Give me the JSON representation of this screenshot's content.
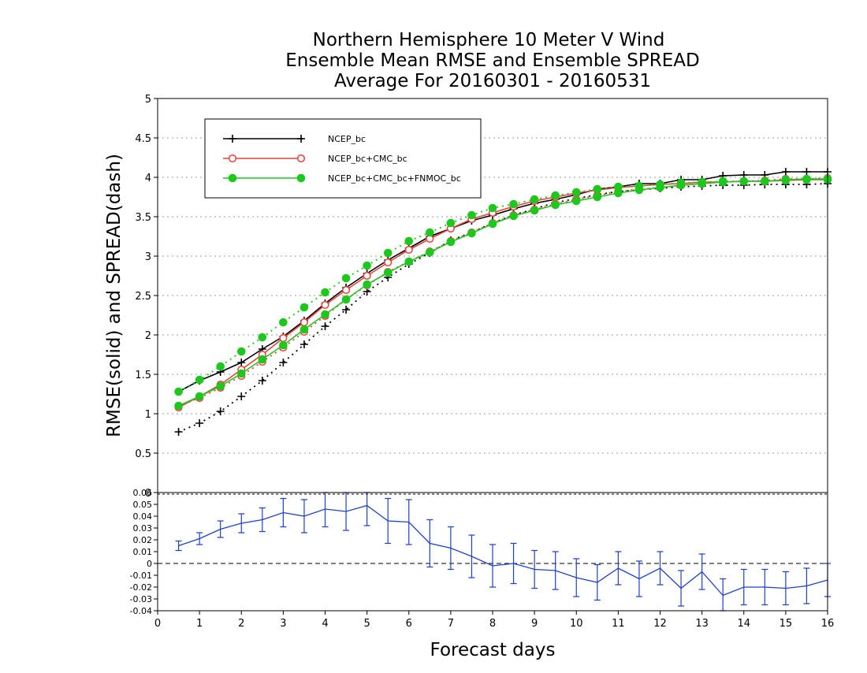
{
  "chart_data": [
    {
      "type": "line",
      "title": [
        "Northern Hemisphere 10 Meter V Wind",
        "Ensemble Mean RMSE and Ensemble SPREAD",
        "Average For 20160301 - 20160531"
      ],
      "xlabel": "",
      "ylabel": "RMSE(solid) and SPREAD(dash)",
      "xlim": [
        0,
        16
      ],
      "ylim": [
        0,
        5
      ],
      "yticks": [
        "0",
        "0.5",
        "1",
        "1.5",
        "2",
        "2.5",
        "3",
        "3.5",
        "4",
        "4.5",
        "5"
      ],
      "grid": "horizontal dotted",
      "legend_position": "top-left",
      "x": [
        0.5,
        1,
        1.5,
        2,
        2.5,
        3,
        3.5,
        4,
        4.5,
        5,
        5.5,
        6,
        6.5,
        7,
        7.5,
        8,
        8.5,
        9,
        9.5,
        10,
        10.5,
        11,
        11.5,
        12,
        12.5,
        13,
        13.5,
        14,
        14.5,
        15,
        15.5,
        16
      ],
      "series": [
        {
          "name": "NCEP_bc",
          "color": "#000000",
          "marker": "plus",
          "rmse": [
            1.28,
            1.42,
            1.53,
            1.65,
            1.82,
            1.98,
            2.18,
            2.4,
            2.6,
            2.78,
            2.95,
            3.1,
            3.25,
            3.35,
            3.45,
            3.52,
            3.6,
            3.67,
            3.72,
            3.78,
            3.85,
            3.88,
            3.92,
            3.92,
            3.97,
            3.97,
            4.02,
            4.03,
            4.03,
            4.07,
            4.07,
            4.07
          ],
          "spread": [
            0.77,
            0.88,
            1.03,
            1.22,
            1.42,
            1.65,
            1.88,
            2.11,
            2.32,
            2.55,
            2.73,
            2.9,
            3.04,
            3.2,
            3.3,
            3.42,
            3.52,
            3.6,
            3.68,
            3.73,
            3.78,
            3.82,
            3.84,
            3.86,
            3.88,
            3.89,
            3.9,
            3.9,
            3.91,
            3.91,
            3.91,
            3.92
          ]
        },
        {
          "name": "NCEP_bc+CMC_bc",
          "color": "#e8413b",
          "marker": "circle-open",
          "rmse": [
            1.08,
            1.22,
            1.37,
            1.56,
            1.75,
            1.96,
            2.16,
            2.38,
            2.57,
            2.75,
            2.92,
            3.08,
            3.22,
            3.35,
            3.47,
            3.55,
            3.63,
            3.7,
            3.75,
            3.8,
            3.84,
            3.87,
            3.89,
            3.91,
            3.92,
            3.94,
            3.94,
            3.95,
            3.95,
            3.96,
            3.97,
            3.97
          ],
          "spread": [
            1.1,
            1.2,
            1.33,
            1.48,
            1.66,
            1.84,
            2.04,
            2.24,
            2.45,
            2.63,
            2.8,
            2.93,
            3.06,
            3.19,
            3.3,
            3.42,
            3.52,
            3.59,
            3.66,
            3.72,
            3.77,
            3.82,
            3.85,
            3.87,
            3.9,
            3.92,
            3.94,
            3.95,
            3.96,
            3.98,
            3.98,
            3.99
          ]
        },
        {
          "name": "NCEP_bc+CMC_bc+FNMOC_bc",
          "color": "#1ec71e",
          "marker": "circle-filled",
          "rmse": [
            1.1,
            1.22,
            1.35,
            1.51,
            1.69,
            1.87,
            2.07,
            2.26,
            2.45,
            2.64,
            2.79,
            2.93,
            3.05,
            3.18,
            3.29,
            3.41,
            3.51,
            3.58,
            3.65,
            3.7,
            3.75,
            3.8,
            3.84,
            3.87,
            3.9,
            3.92,
            3.94,
            3.95,
            3.95,
            3.97,
            3.98,
            3.98
          ],
          "spread": [
            1.28,
            1.43,
            1.6,
            1.79,
            1.97,
            2.16,
            2.35,
            2.54,
            2.72,
            2.88,
            3.04,
            3.19,
            3.3,
            3.42,
            3.52,
            3.61,
            3.66,
            3.72,
            3.77,
            3.81,
            3.85,
            3.88,
            3.89,
            3.91,
            3.93,
            3.94,
            3.95,
            3.95,
            3.95,
            3.96,
            3.97,
            3.97
          ]
        }
      ]
    },
    {
      "type": "line",
      "subtype": "errorbar",
      "xlabel": "Forecast days",
      "xlim": [
        0,
        16
      ],
      "xticks": [
        "0",
        "1",
        "2",
        "3",
        "4",
        "5",
        "6",
        "7",
        "8",
        "9",
        "10",
        "11",
        "12",
        "13",
        "14",
        "15",
        "16"
      ],
      "ylim": [
        -0.04,
        0.06
      ],
      "yticks": [
        "-0.04",
        "-0.03",
        "-0.02",
        "-0.01",
        "0",
        "0.01",
        "0.02",
        "0.03",
        "0.04",
        "0.05",
        "0.06"
      ],
      "zero_line": "dashed",
      "series": [
        {
          "color": "#2040d0",
          "x": [
            0.5,
            1,
            1.5,
            2,
            2.5,
            3,
            3.5,
            4,
            4.5,
            5,
            5.5,
            6,
            6.5,
            7,
            7.5,
            8,
            8.5,
            9,
            9.5,
            10,
            10.5,
            11,
            11.5,
            12,
            12.5,
            13,
            13.5,
            14,
            14.5,
            15,
            15.5,
            16
          ],
          "values": [
            0.015,
            0.021,
            0.029,
            0.034,
            0.037,
            0.043,
            0.04,
            0.046,
            0.044,
            0.049,
            0.036,
            0.035,
            0.017,
            0.013,
            0.006,
            -0.002,
            0.0,
            -0.005,
            -0.006,
            -0.012,
            -0.016,
            -0.004,
            -0.013,
            -0.004,
            -0.021,
            -0.007,
            -0.027,
            -0.02,
            -0.02,
            -0.021,
            -0.019,
            -0.014
          ],
          "error": [
            0.004,
            0.005,
            0.007,
            0.008,
            0.01,
            0.012,
            0.014,
            0.015,
            0.016,
            0.017,
            0.019,
            0.019,
            0.02,
            0.018,
            0.018,
            0.018,
            0.017,
            0.016,
            0.016,
            0.016,
            0.015,
            0.014,
            0.015,
            0.014,
            0.015,
            0.015,
            0.014,
            0.015,
            0.015,
            0.014,
            0.015,
            0.014
          ]
        }
      ]
    }
  ]
}
